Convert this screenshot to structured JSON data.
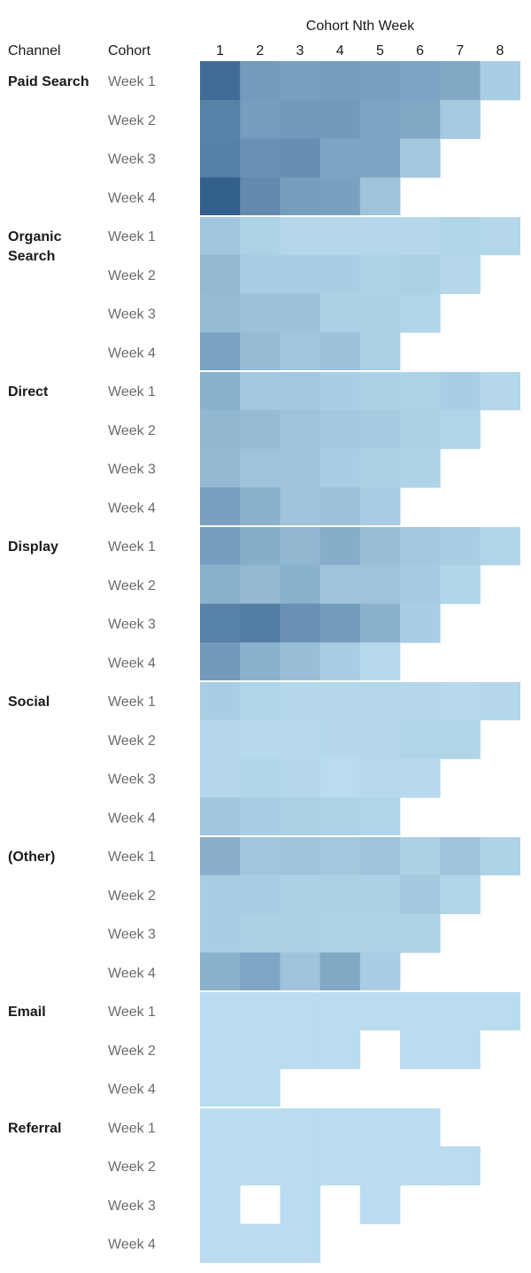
{
  "chart_data": {
    "type": "heatmap",
    "title": "",
    "row_headers": {
      "channel": "Channel",
      "cohort": "Cohort"
    },
    "column_header": "Cohort Nth Week",
    "columns": [
      "1",
      "2",
      "3",
      "4",
      "5",
      "6",
      "7",
      "8"
    ],
    "color_scale": {
      "low": "#b9dcee",
      "high": "#335f8d"
    },
    "groups": [
      {
        "channel": "Paid Search",
        "rows": [
          {
            "cohort": "Week 1",
            "values": [
              100,
              62,
              58,
              60,
              58,
              55,
              52,
              22
            ]
          },
          {
            "cohort": "Week 2",
            "values": [
              82,
              60,
              64,
              63,
              55,
              52,
              25,
              null
            ]
          },
          {
            "cohort": "Week 3",
            "values": [
              84,
              70,
              72,
              55,
              55,
              26,
              null,
              null
            ]
          },
          {
            "cohort": "Week 4",
            "values": [
              110,
              76,
              60,
              58,
              30,
              null,
              null,
              null
            ]
          }
        ]
      },
      {
        "channel": "Organic Search",
        "rows": [
          {
            "cohort": "Week 1",
            "values": [
              28,
              18,
              14,
              14,
              14,
              14,
              16,
              14
            ]
          },
          {
            "cohort": "Week 2",
            "values": [
              38,
              22,
              22,
              22,
              18,
              20,
              14,
              null
            ]
          },
          {
            "cohort": "Week 3",
            "values": [
              36,
              32,
              32,
              20,
              20,
              16,
              null,
              null
            ]
          },
          {
            "cohort": "Week 4",
            "values": [
              56,
              36,
              28,
              32,
              20,
              null,
              null,
              null
            ]
          }
        ]
      },
      {
        "channel": "Direct",
        "rows": [
          {
            "cohort": "Week 1",
            "values": [
              44,
              26,
              26,
              22,
              20,
              18,
              22,
              14
            ]
          },
          {
            "cohort": "Week 2",
            "values": [
              40,
              36,
              30,
              26,
              24,
              20,
              16,
              null
            ]
          },
          {
            "cohort": "Week 3",
            "values": [
              38,
              30,
              30,
              22,
              20,
              18,
              null,
              null
            ]
          },
          {
            "cohort": "Week 4",
            "values": [
              58,
              44,
              30,
              32,
              22,
              null,
              null,
              null
            ]
          }
        ]
      },
      {
        "channel": "Display",
        "rows": [
          {
            "cohort": "Week 1",
            "values": [
              60,
              48,
              40,
              48,
              34,
              26,
              22,
              16
            ]
          },
          {
            "cohort": "Week 2",
            "values": [
              44,
              38,
              44,
              30,
              30,
              24,
              16,
              null
            ]
          },
          {
            "cohort": "Week 3",
            "values": [
              82,
              86,
              70,
              62,
              44,
              22,
              null,
              null
            ]
          },
          {
            "cohort": "Week 4",
            "values": [
              64,
              44,
              34,
              22,
              12,
              null,
              null,
              null
            ]
          }
        ]
      },
      {
        "channel": "Social",
        "rows": [
          {
            "cohort": "Week 1",
            "values": [
              22,
              16,
              14,
              14,
              14,
              14,
              12,
              14
            ]
          },
          {
            "cohort": "Week 2",
            "values": [
              14,
              12,
              12,
              14,
              14,
              16,
              16,
              null
            ]
          },
          {
            "cohort": "Week 3",
            "values": [
              14,
              16,
              14,
              10,
              12,
              12,
              null,
              null
            ]
          },
          {
            "cohort": "Week 4",
            "values": [
              28,
              22,
              20,
              18,
              16,
              null,
              null,
              null
            ]
          }
        ]
      },
      {
        "channel": "(Other)",
        "rows": [
          {
            "cohort": "Week 1",
            "values": [
              46,
              28,
              30,
              26,
              30,
              20,
              30,
              18
            ]
          },
          {
            "cohort": "Week 2",
            "values": [
              22,
              22,
              20,
              20,
              20,
              26,
              16,
              null
            ]
          },
          {
            "cohort": "Week 3",
            "values": [
              22,
              20,
              20,
              18,
              18,
              18,
              null,
              null
            ]
          },
          {
            "cohort": "Week 4",
            "values": [
              44,
              54,
              30,
              52,
              22,
              null,
              null,
              null
            ]
          }
        ]
      },
      {
        "channel": "Email",
        "rows": [
          {
            "cohort": "Week 1",
            "values": [
              10,
              10,
              10,
              10,
              10,
              10,
              10,
              10
            ]
          },
          {
            "cohort": "Week 2",
            "values": [
              10,
              10,
              10,
              10,
              null,
              10,
              10,
              null
            ]
          },
          {
            "cohort": "Week 4",
            "values": [
              10,
              10,
              null,
              null,
              null,
              null,
              null,
              null
            ]
          }
        ]
      },
      {
        "channel": "Referral",
        "rows": [
          {
            "cohort": "Week 1",
            "values": [
              10,
              10,
              10,
              10,
              10,
              10,
              null,
              null
            ]
          },
          {
            "cohort": "Week 2",
            "values": [
              10,
              10,
              10,
              10,
              10,
              10,
              10,
              null
            ]
          },
          {
            "cohort": "Week 3",
            "values": [
              10,
              null,
              10,
              null,
              10,
              null,
              null,
              null
            ]
          },
          {
            "cohort": "Week 4",
            "values": [
              10,
              10,
              10,
              null,
              null,
              null,
              null,
              null
            ]
          }
        ]
      }
    ]
  }
}
